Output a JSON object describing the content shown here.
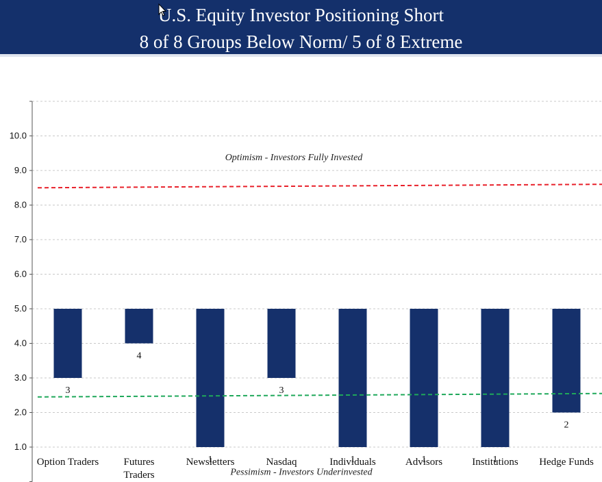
{
  "header": {
    "title_line1": "U.S. Equity Investor Positioning Short",
    "title_line2": "8 of 8 Groups Below Norm/ 5 of 8 Extreme"
  },
  "colors": {
    "header_bg": "#14306b",
    "bar": "#15306b",
    "optimism_line": "#e8202a",
    "pessimism_line": "#1fa85a",
    "grid": "#c8c8c8"
  },
  "icons": {
    "cursor": "mouse-pointer-icon"
  },
  "chart_data": {
    "type": "bar",
    "title": "U.S. Equity Investor Positioning Short",
    "subtitle": "8 of 8 Groups Below Norm/ 5 of 8 Extreme",
    "baseline": 5.0,
    "categories": [
      "Option Traders",
      "Futures Traders",
      "Newsletters",
      "Nasdaq",
      "Individuals",
      "Advisors",
      "Institutions",
      "Hedge Funds"
    ],
    "category_lines": [
      [
        "Option Traders"
      ],
      [
        "Futures",
        "Traders"
      ],
      [
        "Newsletters"
      ],
      [
        "Nasdaq"
      ],
      [
        "Individuals"
      ],
      [
        "Advisors"
      ],
      [
        "Institutions"
      ],
      [
        "Hedge Funds"
      ]
    ],
    "values": [
      3,
      4,
      1,
      3,
      1,
      1,
      1,
      2
    ],
    "data_labels": [
      "3",
      "4",
      "1",
      "3",
      "1",
      "1",
      "1",
      "2"
    ],
    "ylim": [
      0,
      11
    ],
    "yticks": [
      1.0,
      2.0,
      3.0,
      4.0,
      5.0,
      6.0,
      7.0,
      8.0,
      9.0,
      10.0
    ],
    "ytick_labels": [
      "1.0",
      "2.0",
      "3.0",
      "4.0",
      "5.0",
      "6.0",
      "7.0",
      "8.0",
      "9.0",
      "10.0"
    ],
    "grid": true,
    "xlabel": "",
    "ylabel": "",
    "reference_lines": [
      {
        "name": "optimism",
        "start": 8.5,
        "end": 8.6
      },
      {
        "name": "pessimism",
        "start": 2.45,
        "end": 2.55
      }
    ],
    "annotations": {
      "optimism": "Optimism - Investors Fully Invested",
      "pessimism": "Pessimism - Investors Underinvested"
    }
  }
}
